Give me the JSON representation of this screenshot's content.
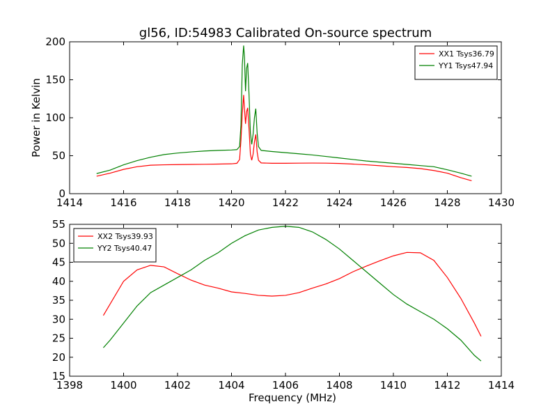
{
  "title": "gl56, ID:54983 Calibrated On-source spectrum",
  "chart_data": [
    {
      "type": "line",
      "ylabel": "Power in Kelvin",
      "xlabel": "",
      "xlim": [
        1414,
        1430
      ],
      "ylim": [
        0,
        200
      ],
      "xticks": [
        "1414",
        "1416",
        "1418",
        "1420",
        "1422",
        "1424",
        "1426",
        "1428",
        "1430"
      ],
      "yticks": [
        "0",
        "50",
        "100",
        "150",
        "200"
      ],
      "legend_placement": "top-right",
      "series": [
        {
          "name": "XX1 Tsys36.79",
          "color": "#ff0000",
          "points": [
            [
              1415.0,
              23
            ],
            [
              1415.5,
              27
            ],
            [
              1416.0,
              32
            ],
            [
              1416.5,
              35.5
            ],
            [
              1417.0,
              37.5
            ],
            [
              1417.5,
              38
            ],
            [
              1418.0,
              38.3
            ],
            [
              1418.5,
              38.5
            ],
            [
              1419.0,
              38.7
            ],
            [
              1419.5,
              39
            ],
            [
              1420.0,
              39.3
            ],
            [
              1420.2,
              40
            ],
            [
              1420.3,
              45
            ],
            [
              1420.35,
              70
            ],
            [
              1420.4,
              105
            ],
            [
              1420.45,
              130
            ],
            [
              1420.48,
              112
            ],
            [
              1420.52,
              92
            ],
            [
              1420.56,
              108
            ],
            [
              1420.6,
              113
            ],
            [
              1420.65,
              85
            ],
            [
              1420.7,
              52
            ],
            [
              1420.75,
              44
            ],
            [
              1420.8,
              52
            ],
            [
              1420.85,
              68
            ],
            [
              1420.9,
              78
            ],
            [
              1420.95,
              55
            ],
            [
              1421.0,
              44
            ],
            [
              1421.1,
              40.5
            ],
            [
              1421.5,
              40
            ],
            [
              1422.0,
              40
            ],
            [
              1422.5,
              40.2
            ],
            [
              1423.0,
              40.3
            ],
            [
              1423.5,
              40.2
            ],
            [
              1424.0,
              39.8
            ],
            [
              1424.5,
              39
            ],
            [
              1425.0,
              38
            ],
            [
              1425.5,
              36.8
            ],
            [
              1426.0,
              35.5
            ],
            [
              1426.5,
              34.5
            ],
            [
              1427.0,
              33
            ],
            [
              1427.5,
              30.5
            ],
            [
              1428.0,
              27
            ],
            [
              1428.5,
              21
            ],
            [
              1428.9,
              17
            ]
          ]
        },
        {
          "name": "YY1 Tsys47.94",
          "color": "#008000",
          "points": [
            [
              1415.0,
              26.5
            ],
            [
              1415.5,
              31
            ],
            [
              1416.0,
              38
            ],
            [
              1416.5,
              43.5
            ],
            [
              1417.0,
              48
            ],
            [
              1417.5,
              51.5
            ],
            [
              1418.0,
              53.5
            ],
            [
              1418.5,
              55
            ],
            [
              1419.0,
              56.2
            ],
            [
              1419.5,
              57
            ],
            [
              1420.0,
              57.5
            ],
            [
              1420.2,
              58
            ],
            [
              1420.3,
              62
            ],
            [
              1420.35,
              90
            ],
            [
              1420.4,
              170
            ],
            [
              1420.45,
              195
            ],
            [
              1420.48,
              180
            ],
            [
              1420.52,
              135
            ],
            [
              1420.56,
              165
            ],
            [
              1420.6,
              172
            ],
            [
              1420.65,
              130
            ],
            [
              1420.7,
              80
            ],
            [
              1420.75,
              65
            ],
            [
              1420.8,
              78
            ],
            [
              1420.85,
              100
            ],
            [
              1420.9,
              112
            ],
            [
              1420.95,
              80
            ],
            [
              1421.0,
              62
            ],
            [
              1421.1,
              57
            ],
            [
              1421.5,
              55.5
            ],
            [
              1422.0,
              54
            ],
            [
              1422.5,
              52.5
            ],
            [
              1423.0,
              51
            ],
            [
              1423.5,
              49
            ],
            [
              1424.0,
              47
            ],
            [
              1424.5,
              45
            ],
            [
              1425.0,
              43
            ],
            [
              1425.5,
              41.5
            ],
            [
              1426.0,
              40
            ],
            [
              1426.5,
              38.5
            ],
            [
              1427.0,
              37
            ],
            [
              1427.5,
              35.5
            ],
            [
              1428.0,
              31.5
            ],
            [
              1428.5,
              27
            ],
            [
              1428.9,
              23
            ]
          ]
        }
      ]
    },
    {
      "type": "line",
      "ylabel": "",
      "xlabel": "Frequency (MHz)",
      "xlim": [
        1398,
        1414
      ],
      "ylim": [
        15,
        55
      ],
      "xticks": [
        "1398",
        "1400",
        "1402",
        "1404",
        "1406",
        "1408",
        "1410",
        "1412",
        "1414"
      ],
      "yticks": [
        "15",
        "20",
        "25",
        "30",
        "35",
        "40",
        "45",
        "50",
        "55"
      ],
      "legend_placement": "top-left",
      "series": [
        {
          "name": "XX2 Tsys39.93",
          "color": "#ff0000",
          "points": [
            [
              1399.25,
              31
            ],
            [
              1399.5,
              34
            ],
            [
              1400.0,
              40
            ],
            [
              1400.5,
              43
            ],
            [
              1401.0,
              44.2
            ],
            [
              1401.5,
              43.8
            ],
            [
              1402.0,
              42
            ],
            [
              1402.5,
              40.3
            ],
            [
              1403.0,
              39
            ],
            [
              1403.5,
              38.2
            ],
            [
              1404.0,
              37.2
            ],
            [
              1404.5,
              36.8
            ],
            [
              1405.0,
              36.3
            ],
            [
              1405.5,
              36.1
            ],
            [
              1406.0,
              36.3
            ],
            [
              1406.5,
              37
            ],
            [
              1407.0,
              38.2
            ],
            [
              1407.5,
              39.3
            ],
            [
              1408.0,
              40.7
            ],
            [
              1408.5,
              42.5
            ],
            [
              1409.0,
              44
            ],
            [
              1409.5,
              45.4
            ],
            [
              1410.0,
              46.7
            ],
            [
              1410.5,
              47.6
            ],
            [
              1411.0,
              47.5
            ],
            [
              1411.5,
              45.5
            ],
            [
              1412.0,
              41
            ],
            [
              1412.5,
              35.5
            ],
            [
              1413.0,
              29
            ],
            [
              1413.25,
              25.5
            ]
          ]
        },
        {
          "name": "YY2 Tsys40.47",
          "color": "#008000",
          "points": [
            [
              1399.25,
              22.5
            ],
            [
              1399.5,
              24.5
            ],
            [
              1400.0,
              29
            ],
            [
              1400.5,
              33.5
            ],
            [
              1401.0,
              37
            ],
            [
              1401.5,
              39
            ],
            [
              1402.0,
              41
            ],
            [
              1402.5,
              43
            ],
            [
              1403.0,
              45.5
            ],
            [
              1403.5,
              47.5
            ],
            [
              1404.0,
              50
            ],
            [
              1404.5,
              52
            ],
            [
              1405.0,
              53.5
            ],
            [
              1405.5,
              54.2
            ],
            [
              1406.0,
              54.5
            ],
            [
              1406.5,
              54.2
            ],
            [
              1407.0,
              53
            ],
            [
              1407.5,
              51
            ],
            [
              1408.0,
              48.5
            ],
            [
              1408.5,
              45.5
            ],
            [
              1409.0,
              42.5
            ],
            [
              1409.5,
              39.5
            ],
            [
              1410.0,
              36.5
            ],
            [
              1410.5,
              34
            ],
            [
              1411.0,
              32
            ],
            [
              1411.5,
              30
            ],
            [
              1412.0,
              27.5
            ],
            [
              1412.5,
              24.5
            ],
            [
              1413.0,
              20.5
            ],
            [
              1413.25,
              19
            ]
          ]
        }
      ]
    }
  ]
}
